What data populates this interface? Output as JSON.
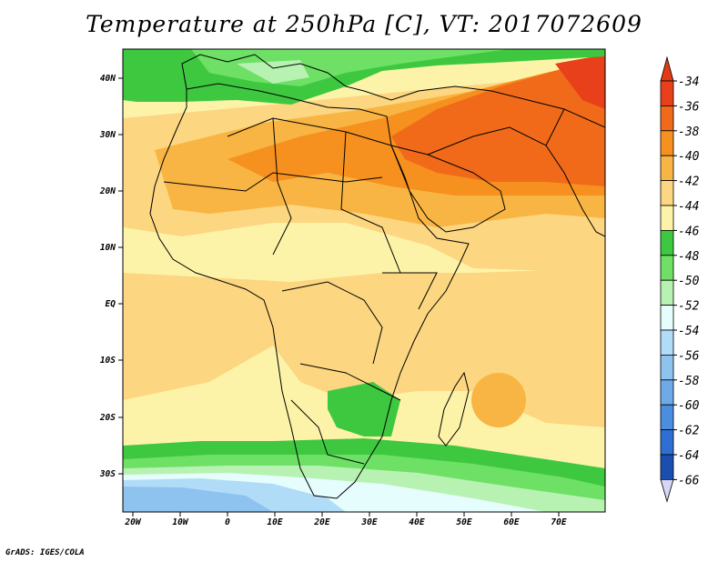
{
  "title": "Temperature at 250hPa [C], VT: 2017072609",
  "credit": "GrADS: IGES/COLA",
  "map": {
    "lat_labels": [
      "40N",
      "30N",
      "20N",
      "10N",
      "EQ",
      "10S",
      "20S",
      "30S"
    ],
    "lon_labels": [
      "20W",
      "10W",
      "0",
      "10E",
      "20E",
      "30E",
      "40E",
      "50E",
      "60E",
      "70E"
    ],
    "lon_range": [
      -22,
      80
    ],
    "lat_range": [
      -37,
      45
    ],
    "field": "temperature at 250hPa",
    "units": "C"
  },
  "colorbar": {
    "labels": [
      "-34",
      "-36",
      "-38",
      "-40",
      "-42",
      "-44",
      "-46",
      "-48",
      "-50",
      "-52",
      "-54",
      "-56",
      "-58",
      "-60",
      "-62",
      "-64",
      "-66"
    ],
    "colors": [
      "#e8401a",
      "#f06a1a",
      "#f6911f",
      "#f9b543",
      "#fcd680",
      "#fdf3a8",
      "#3ec840",
      "#6ee065",
      "#b8f2b2",
      "#e5fdfd",
      "#b0dcf8",
      "#8ec3f0",
      "#6faae8",
      "#4a8ee0",
      "#2d6fd2",
      "#1a4fb0",
      "#102080"
    ],
    "top_color": "#e33a15",
    "bottom_color": "#d8d6f8"
  }
}
